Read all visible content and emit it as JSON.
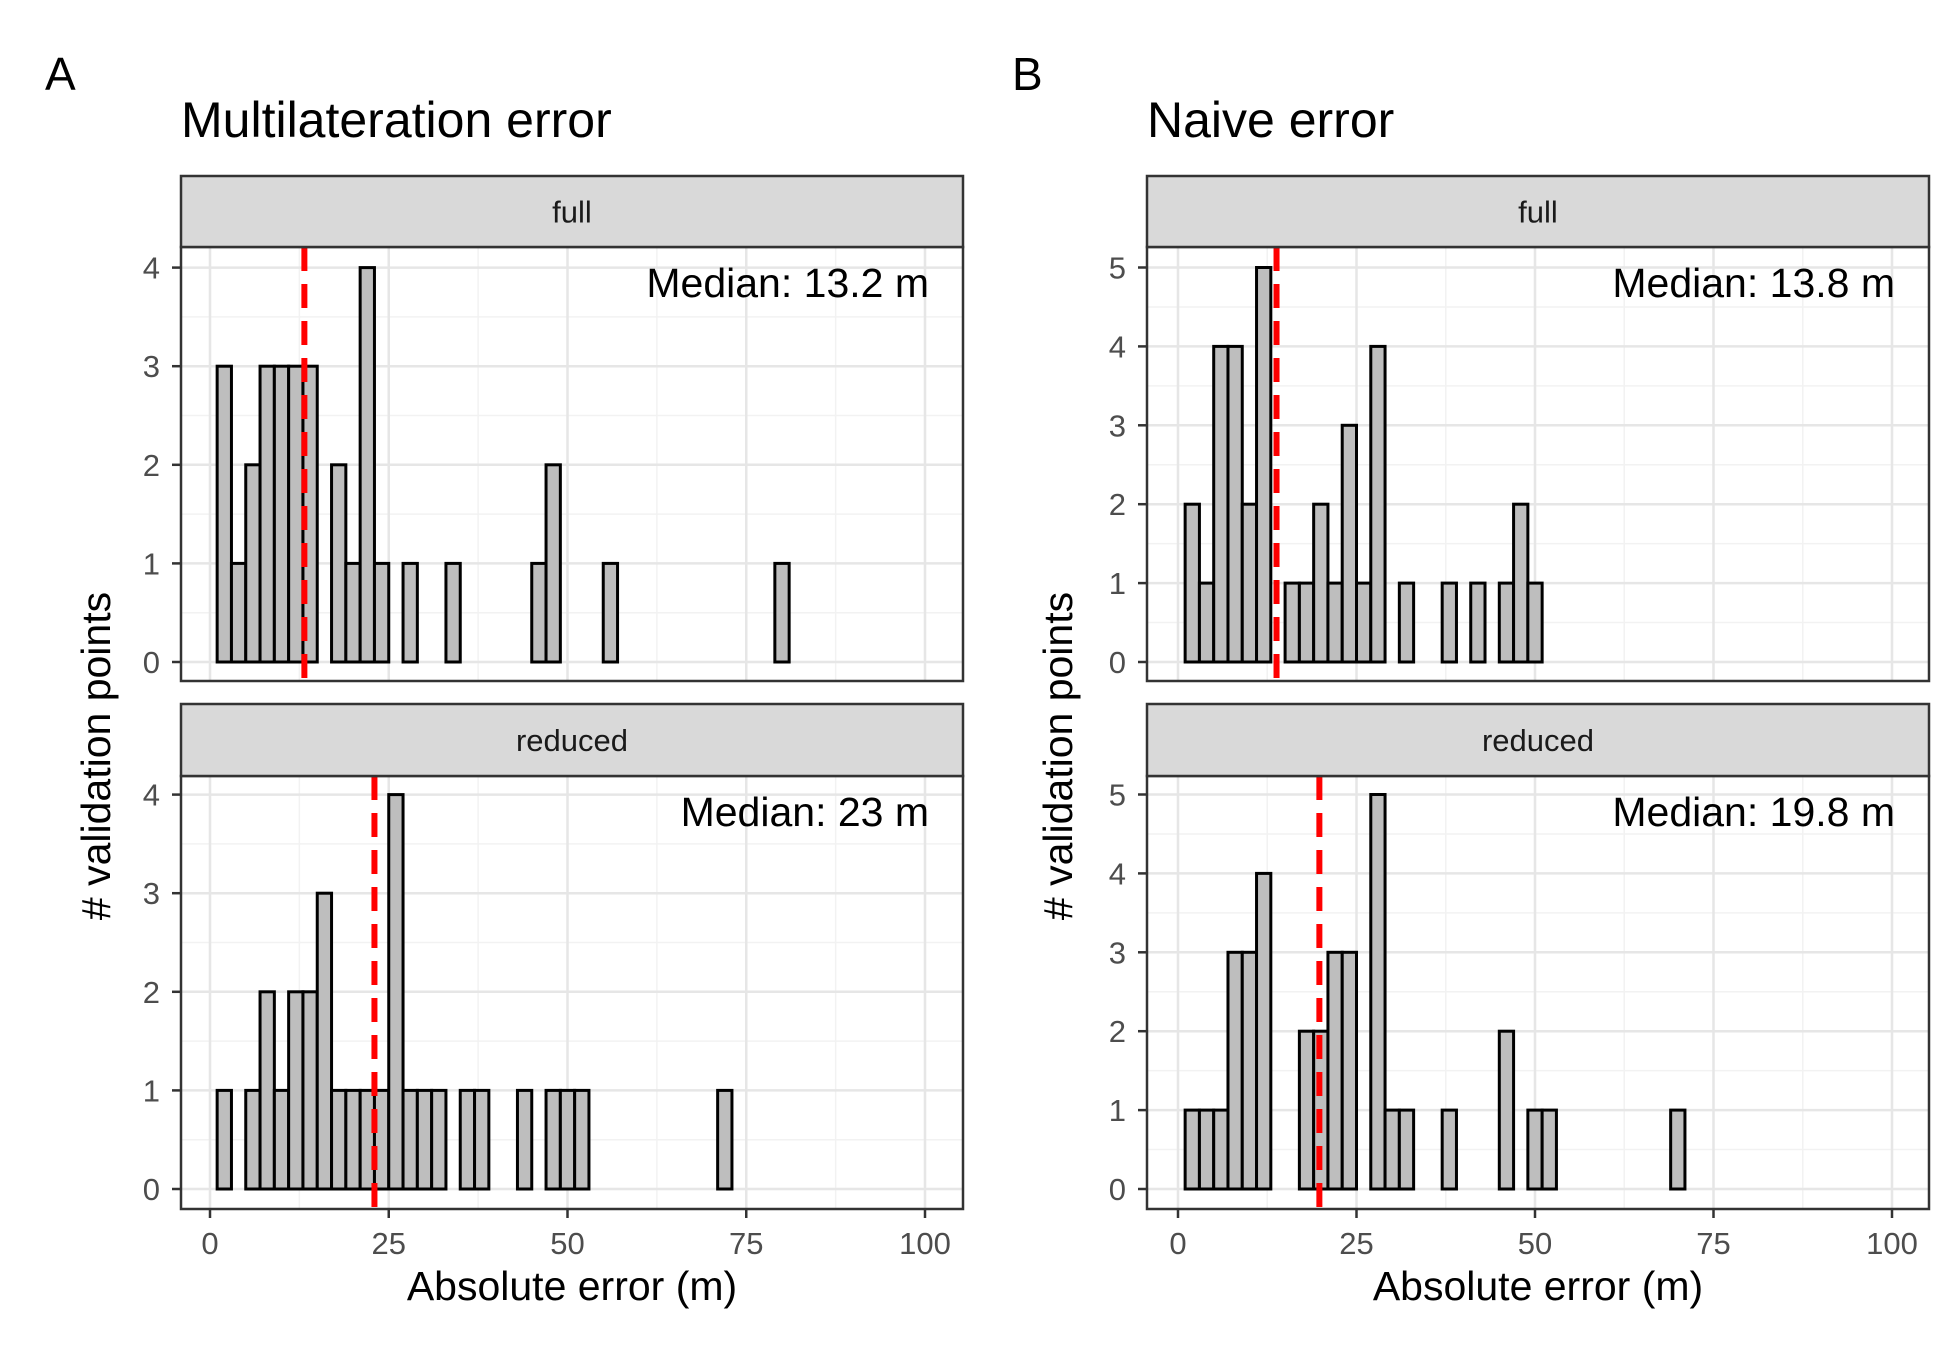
{
  "chart_data": [
    {
      "type": "bar",
      "panel_label": "A",
      "title": "Multilateration error",
      "xlabel": "Absolute error (m)",
      "ylabel": "# validation points",
      "xlim": [
        0,
        100
      ],
      "x_ticks": [
        "0",
        "25",
        "50",
        "75",
        "100"
      ],
      "bin_width": 2,
      "median_color": "#ff0000",
      "bar_fill": "#bebebe",
      "grid": true,
      "facets": [
        {
          "strip": "full",
          "ylim": [
            0,
            4
          ],
          "y_ticks": [
            "0",
            "1",
            "2",
            "3",
            "4"
          ],
          "median_value": 13.2,
          "median_label": "Median: 13.2 m",
          "x": [
            2,
            4,
            6,
            8,
            10,
            12,
            14,
            16,
            18,
            20,
            22,
            24,
            26,
            28,
            30,
            32,
            34,
            36,
            38,
            40,
            42,
            44,
            46,
            48,
            50,
            52,
            54,
            56,
            58,
            60,
            62,
            64,
            66,
            68,
            70,
            72,
            74,
            76,
            78,
            80,
            82,
            84,
            86,
            88,
            90,
            92,
            94,
            96,
            98
          ],
          "values": [
            3,
            1,
            2,
            3,
            3,
            3,
            3,
            0,
            2,
            1,
            4,
            1,
            0,
            1,
            0,
            0,
            1,
            0,
            0,
            0,
            0,
            0,
            1,
            2,
            0,
            0,
            0,
            1,
            0,
            0,
            0,
            0,
            0,
            0,
            0,
            0,
            0,
            0,
            0,
            1,
            0,
            0,
            0,
            0,
            0,
            0,
            0,
            0,
            0
          ]
        },
        {
          "strip": "reduced",
          "ylim": [
            0,
            4
          ],
          "y_ticks": [
            "0",
            "1",
            "2",
            "3",
            "4"
          ],
          "median_value": 23,
          "median_label": "Median: 23 m",
          "x": [
            2,
            4,
            6,
            8,
            10,
            12,
            14,
            16,
            18,
            20,
            22,
            24,
            26,
            28,
            30,
            32,
            34,
            36,
            38,
            40,
            42,
            44,
            46,
            48,
            50,
            52,
            54,
            56,
            58,
            60,
            62,
            64,
            66,
            68,
            70,
            72,
            74,
            76,
            78,
            80,
            82,
            84,
            86,
            88,
            90,
            92,
            94,
            96,
            98
          ],
          "values": [
            1,
            0,
            1,
            2,
            1,
            2,
            2,
            3,
            1,
            1,
            1,
            1,
            4,
            1,
            1,
            1,
            0,
            1,
            1,
            0,
            0,
            1,
            0,
            1,
            1,
            1,
            0,
            0,
            0,
            0,
            0,
            0,
            0,
            0,
            0,
            1,
            0,
            0,
            0,
            0,
            0,
            0,
            0,
            0,
            0,
            0,
            0,
            0,
            0
          ]
        }
      ]
    },
    {
      "type": "bar",
      "panel_label": "B",
      "title": "Naive error",
      "xlabel": "Absolute error (m)",
      "ylabel": "# validation points",
      "xlim": [
        0,
        100
      ],
      "x_ticks": [
        "0",
        "25",
        "50",
        "75",
        "100"
      ],
      "bin_width": 2,
      "median_color": "#ff0000",
      "bar_fill": "#bebebe",
      "grid": true,
      "facets": [
        {
          "strip": "full",
          "ylim": [
            0,
            5
          ],
          "y_ticks": [
            "0",
            "1",
            "2",
            "3",
            "4",
            "5"
          ],
          "median_value": 13.8,
          "median_label": "Median: 13.8 m",
          "x": [
            2,
            4,
            6,
            8,
            10,
            12,
            14,
            16,
            18,
            20,
            22,
            24,
            26,
            28,
            30,
            32,
            34,
            36,
            38,
            40,
            42,
            44,
            46,
            48,
            50,
            52,
            54,
            56,
            58,
            60,
            62,
            64,
            66,
            68,
            70,
            72,
            74,
            76,
            78,
            80,
            82,
            84,
            86,
            88,
            90,
            92,
            94,
            96,
            98
          ],
          "values": [
            2,
            1,
            4,
            4,
            2,
            5,
            0,
            1,
            1,
            2,
            1,
            3,
            1,
            4,
            0,
            1,
            0,
            0,
            1,
            0,
            1,
            0,
            1,
            2,
            1,
            0,
            0,
            0,
            0,
            0,
            0,
            0,
            0,
            0,
            0,
            0,
            0,
            0,
            0,
            0,
            0,
            0,
            0,
            0,
            0,
            0,
            0,
            0,
            0
          ]
        },
        {
          "strip": "reduced",
          "ylim": [
            0,
            5
          ],
          "y_ticks": [
            "0",
            "1",
            "2",
            "3",
            "4",
            "5"
          ],
          "median_value": 19.8,
          "median_label": "Median: 19.8 m",
          "x": [
            2,
            4,
            6,
            8,
            10,
            12,
            14,
            16,
            18,
            20,
            22,
            24,
            26,
            28,
            30,
            32,
            34,
            36,
            38,
            40,
            42,
            44,
            46,
            48,
            50,
            52,
            54,
            56,
            58,
            60,
            62,
            64,
            66,
            68,
            70,
            72,
            74,
            76,
            78,
            80,
            82,
            84,
            86,
            88,
            90,
            92,
            94,
            96,
            98
          ],
          "values": [
            1,
            1,
            1,
            3,
            3,
            4,
            0,
            0,
            2,
            2,
            3,
            3,
            0,
            5,
            1,
            1,
            0,
            0,
            1,
            0,
            0,
            0,
            2,
            0,
            1,
            1,
            0,
            0,
            0,
            0,
            0,
            0,
            0,
            0,
            1,
            0,
            0,
            0,
            0,
            0,
            0,
            0,
            0,
            0,
            0,
            0,
            0,
            0,
            0
          ]
        }
      ]
    }
  ]
}
